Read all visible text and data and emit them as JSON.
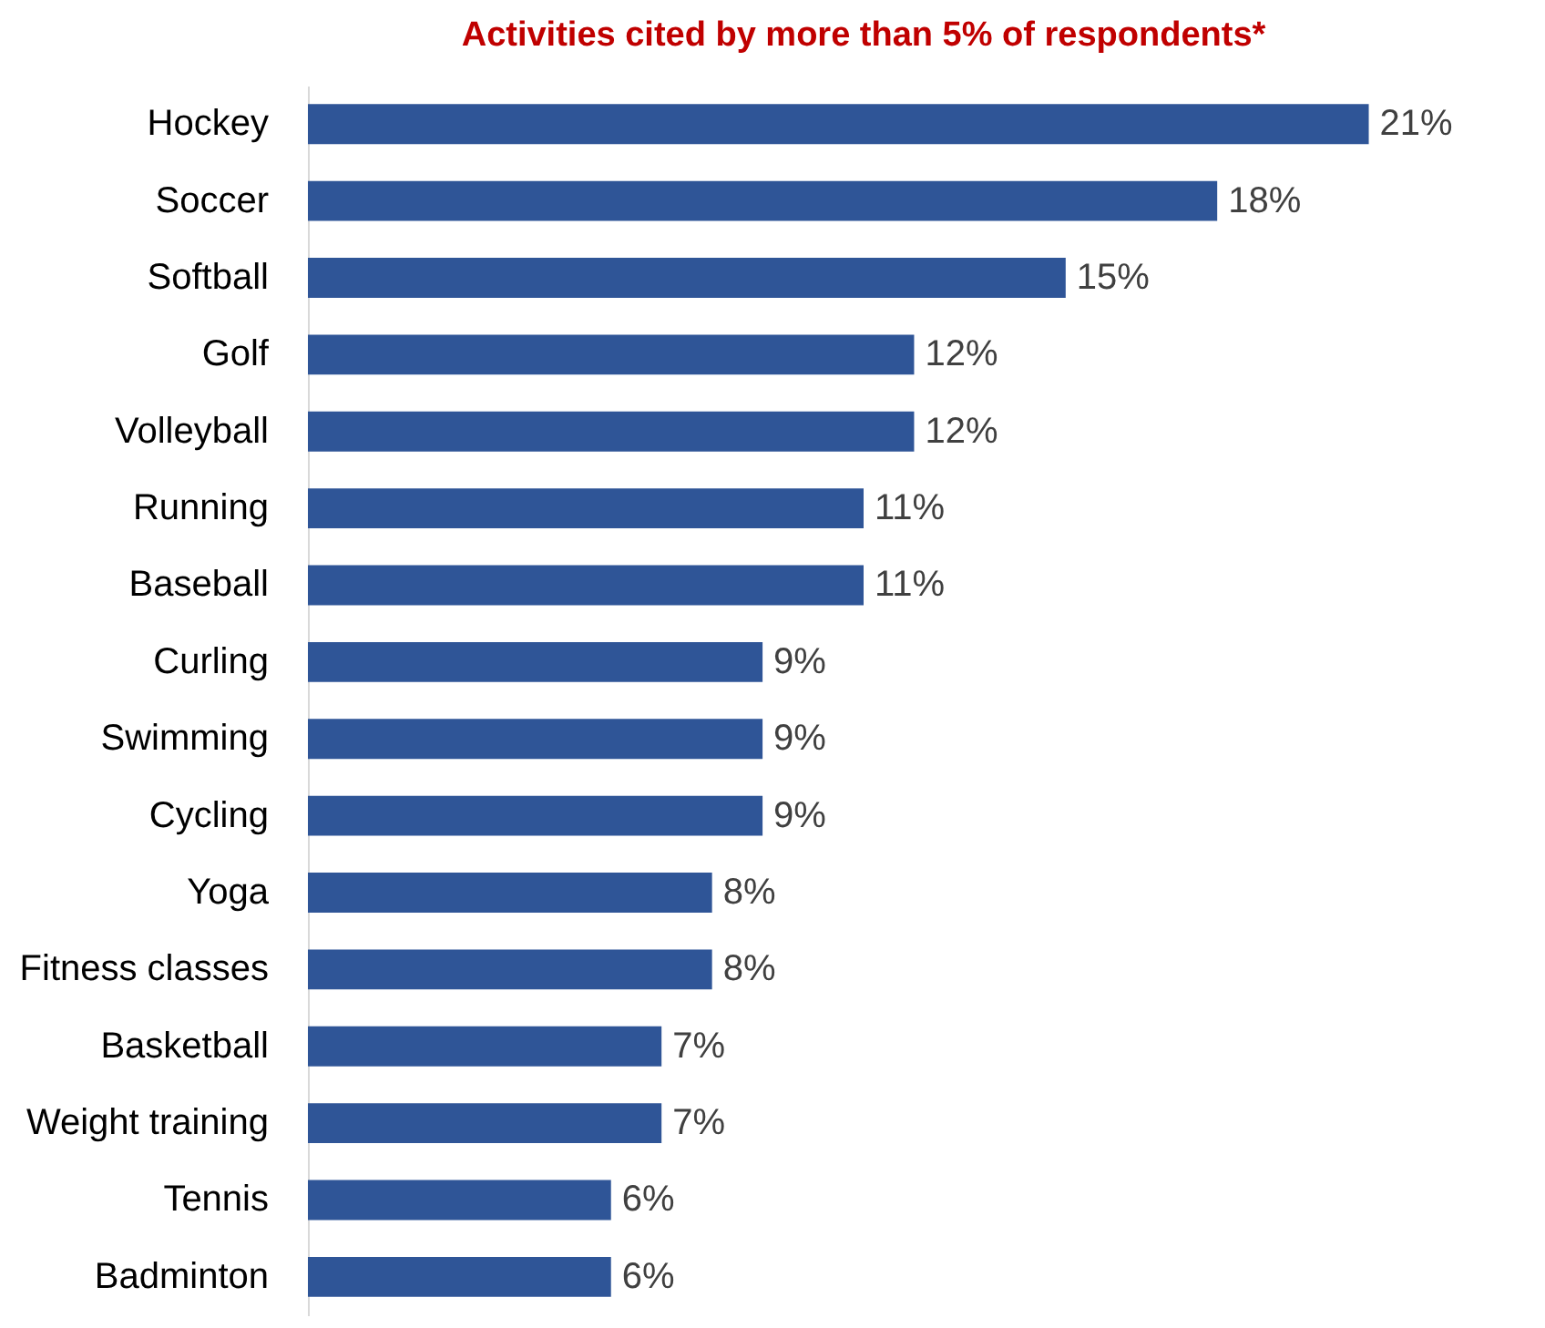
{
  "chart_data": {
    "type": "bar",
    "orientation": "horizontal",
    "title": "Activities cited by more than 5% of respondents*",
    "categories": [
      "Hockey",
      "Soccer",
      "Softball",
      "Golf",
      "Volleyball",
      "Running",
      "Baseball",
      "Curling",
      "Swimming",
      "Cycling",
      "Yoga",
      "Fitness classes",
      "Basketball",
      "Weight training",
      "Tennis",
      "Badminton"
    ],
    "values": [
      21,
      18,
      15,
      12,
      12,
      11,
      11,
      9,
      9,
      9,
      8,
      8,
      7,
      7,
      6,
      6
    ],
    "value_labels": [
      "21%",
      "18%",
      "15%",
      "12%",
      "12%",
      "11%",
      "11%",
      "9%",
      "9%",
      "9%",
      "8%",
      "8%",
      "7%",
      "7%",
      "6%",
      "6%"
    ],
    "color": "#2f5597"
  }
}
